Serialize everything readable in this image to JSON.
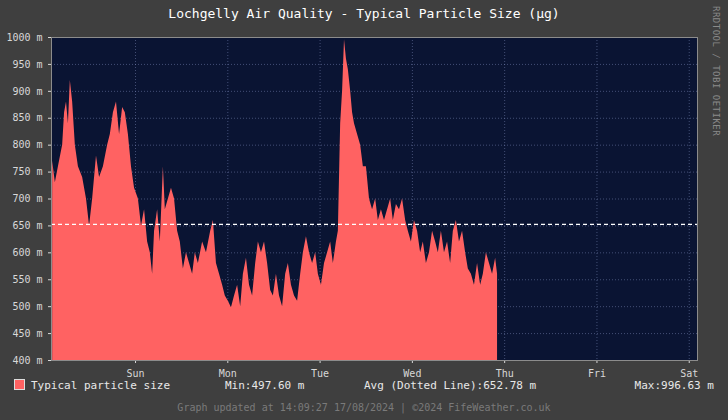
{
  "chart_data": {
    "type": "area",
    "title": "Lochgelly Air Quality - Typical Particle Size (μg)",
    "x": [
      0.3,
      1.0,
      1.8,
      2.9,
      3.4,
      3.9,
      4.4,
      4.9,
      5.5,
      6.2,
      7.0,
      8.1,
      9.1,
      9.9,
      10.7,
      11.7,
      12.5,
      13.5,
      14.6,
      15.3,
      16.1,
      16.9,
      17.7,
      18.5,
      19.2,
      20.0,
      20.8,
      21.6,
      22.6,
      23.4,
      24.2,
      25.0,
      25.7,
      26.3,
      26.8,
      27.6,
      28.3,
      29.1,
      29.6,
      30.4,
      31.2,
      32.0,
      32.8,
      33.5,
      34.3,
      35.1,
      35.9,
      36.7,
      37.4,
      38.2,
      39.3,
      40.3,
      41.4,
      42.1,
      42.9,
      43.7,
      44.5,
      45.2,
      46.0,
      46.8,
      47.6,
      48.4,
      49.2,
      49.9,
      50.7,
      51.5,
      52.3,
      53.1,
      53.8,
      54.6,
      55.4,
      56.2,
      57.0,
      57.7,
      58.5,
      59.3,
      60.1,
      60.9,
      61.6,
      62.4,
      63.2,
      64.0,
      64.8,
      65.5,
      66.3,
      67.1,
      67.9,
      68.7,
      69.4,
      70.2,
      71.0,
      71.8,
      72.6,
      73.3,
      74.1,
      74.6,
      75.2,
      75.7,
      76.2,
      76.7,
      77.2,
      77.8,
      78.3,
      78.8,
      79.6,
      80.4,
      81.1,
      81.9,
      82.7,
      83.5,
      84.3,
      85.0,
      85.8,
      86.6,
      87.4,
      88.2,
      88.9,
      89.7,
      90.5,
      91.3,
      92.1,
      92.8,
      93.6,
      94.4,
      95.2,
      96.0,
      96.7,
      97.5,
      98.3,
      99.1,
      99.9,
      100.6,
      101.4,
      102.2,
      103.0,
      103.8,
      104.5,
      105.3,
      106.1,
      106.9,
      107.7,
      108.4,
      109.2,
      110.0,
      110.8,
      111.6,
      112.3,
      113.1,
      113.9,
      114.7,
      115.5,
      116.0
    ],
    "series": [
      {
        "name": "Typical particle size",
        "color": "#ff6262",
        "values": [
          770,
          730,
          760,
          800,
          860,
          880,
          840,
          920,
          880,
          800,
          760,
          740,
          700,
          650,
          700,
          780,
          740,
          760,
          800,
          820,
          860,
          880,
          820,
          870,
          860,
          820,
          760,
          720,
          700,
          650,
          680,
          620,
          600,
          560,
          640,
          680,
          620,
          760,
          680,
          700,
          720,
          700,
          640,
          620,
          570,
          600,
          580,
          560,
          600,
          580,
          620,
          600,
          640,
          660,
          580,
          560,
          540,
          520,
          510,
          498,
          520,
          540,
          500,
          560,
          590,
          540,
          520,
          580,
          620,
          600,
          620,
          580,
          530,
          520,
          560,
          520,
          500,
          560,
          580,
          540,
          520,
          510,
          560,
          600,
          630,
          600,
          580,
          600,
          560,
          540,
          580,
          600,
          620,
          580,
          620,
          640,
          840,
          900,
          996,
          960,
          940,
          900,
          860,
          840,
          820,
          800,
          760,
          760,
          700,
          680,
          700,
          660,
          680,
          660,
          680,
          700,
          660,
          690,
          680,
          700,
          660,
          640,
          620,
          660,
          640,
          600,
          620,
          580,
          600,
          640,
          620,
          600,
          640,
          600,
          620,
          580,
          640,
          660,
          620,
          640,
          600,
          570,
          560,
          540,
          580,
          540,
          560,
          600,
          580,
          560,
          590,
          560
        ]
      }
    ],
    "xlim": [
      0,
      168
    ],
    "xticks": [
      {
        "value": 21.85,
        "label": "Sun"
      },
      {
        "value": 45.85,
        "label": "Mon"
      },
      {
        "value": 69.85,
        "label": "Tue"
      },
      {
        "value": 93.85,
        "label": "Wed"
      },
      {
        "value": 117.85,
        "label": "Thu"
      },
      {
        "value": 141.85,
        "label": "Fri"
      },
      {
        "value": 165.85,
        "label": "Sat"
      }
    ],
    "ylim": [
      400,
      1000
    ],
    "yticks": [
      {
        "value": 400,
        "label": "400 m"
      },
      {
        "value": 450,
        "label": "450 m"
      },
      {
        "value": 500,
        "label": "500 m"
      },
      {
        "value": 550,
        "label": "550 m"
      },
      {
        "value": 600,
        "label": "600 m"
      },
      {
        "value": 650,
        "label": "650 m"
      },
      {
        "value": 700,
        "label": "700 m"
      },
      {
        "value": 750,
        "label": "750 m"
      },
      {
        "value": 800,
        "label": "800 m"
      },
      {
        "value": 850,
        "label": "850 m"
      },
      {
        "value": 900,
        "label": "900 m"
      },
      {
        "value": 950,
        "label": "950 m"
      },
      {
        "value": 1000,
        "label": "1000 m"
      }
    ],
    "average": 652.78,
    "summary": [
      "Min:497.60 m",
      "Avg (Dotted Line):652.78 m",
      "Max:996.63 m"
    ],
    "grid": true,
    "legend": "bottom",
    "footer": "Graph updated at 14:09:27 17/08/2024 | ©2024 FifeWeather.co.uk",
    "side_label": "RRDTOOL / TOBI OETIKER"
  }
}
